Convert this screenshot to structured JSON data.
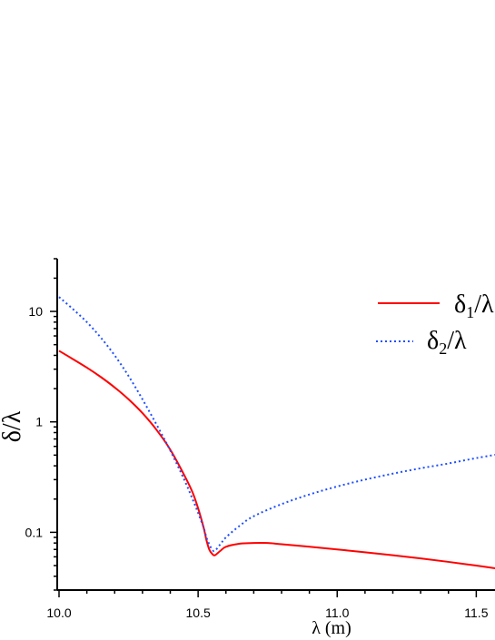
{
  "chart_data": {
    "type": "line",
    "title": "",
    "xlabel": "λ (m)",
    "ylabel": "δ/λ",
    "xlim": [
      10.0,
      11.6
    ],
    "ylim": [
      0.03,
      30
    ],
    "yscale": "log",
    "grid": false,
    "legend_position": "top-right",
    "x_ticks": [
      "10.0",
      "10.5",
      "11.0",
      "11.5"
    ],
    "y_ticks": [
      "0.1",
      "1",
      "10"
    ],
    "series": [
      {
        "name": "δ1/λ",
        "name_main": "δ",
        "name_sub": "1",
        "name_tail": "/λ",
        "color": "#ff0000",
        "style": "solid",
        "x": [
          10.0,
          10.05,
          10.1,
          10.15,
          10.2,
          10.25,
          10.3,
          10.35,
          10.4,
          10.45,
          10.48,
          10.5,
          10.52,
          10.53,
          10.54,
          10.55,
          10.56,
          10.58,
          10.6,
          10.65,
          10.7,
          10.75,
          10.8,
          10.9,
          11.0,
          11.1,
          11.2,
          11.3,
          11.4,
          11.5,
          11.6
        ],
        "y": [
          4.4,
          3.7,
          3.1,
          2.55,
          2.05,
          1.6,
          1.2,
          0.85,
          0.56,
          0.33,
          0.23,
          0.165,
          0.11,
          0.085,
          0.07,
          0.064,
          0.062,
          0.068,
          0.074,
          0.079,
          0.08,
          0.08,
          0.078,
          0.074,
          0.07,
          0.066,
          0.062,
          0.058,
          0.054,
          0.05,
          0.046
        ]
      },
      {
        "name": "δ2/λ",
        "name_main": "δ",
        "name_sub": "2",
        "name_tail": "/λ",
        "color": "#1f4fff",
        "style": "dotted",
        "x": [
          10.0,
          10.05,
          10.1,
          10.15,
          10.2,
          10.25,
          10.3,
          10.35,
          10.4,
          10.45,
          10.48,
          10.5,
          10.52,
          10.53,
          10.54,
          10.55,
          10.56,
          10.58,
          10.6,
          10.65,
          10.7,
          10.8,
          10.9,
          11.0,
          11.1,
          11.2,
          11.3,
          11.4,
          11.5,
          11.6
        ],
        "y": [
          13.5,
          10.5,
          8.0,
          5.8,
          4.0,
          2.6,
          1.6,
          0.95,
          0.55,
          0.3,
          0.2,
          0.15,
          0.11,
          0.09,
          0.078,
          0.07,
          0.068,
          0.078,
          0.09,
          0.115,
          0.14,
          0.18,
          0.22,
          0.26,
          0.3,
          0.34,
          0.38,
          0.42,
          0.47,
          0.52
        ]
      }
    ]
  }
}
